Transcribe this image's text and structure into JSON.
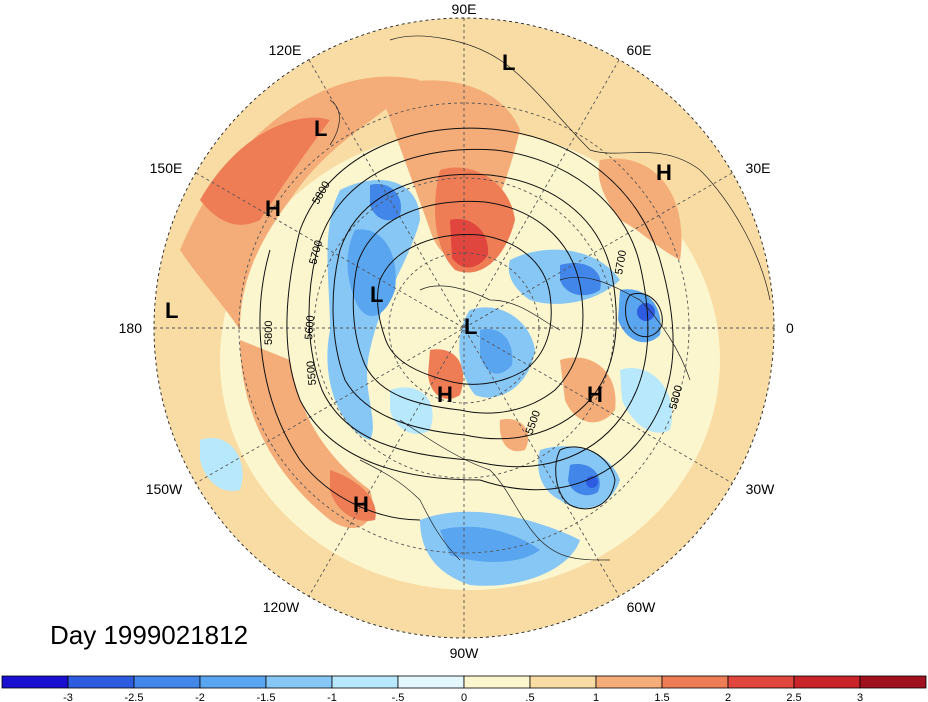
{
  "map": {
    "day_label": "Day 1999021812",
    "lon_labels": {
      "n": "90E",
      "ne": "60E",
      "ene": "30E",
      "e": "0",
      "ese": "30W",
      "se": "60W",
      "s": "90W",
      "sw": "120W",
      "wsw": "150W",
      "w": "180",
      "wnw": "150E",
      "nw": "120E"
    },
    "pressure_centers": [
      {
        "label": "L"
      },
      {
        "label": "L"
      },
      {
        "label": "H"
      },
      {
        "label": "H"
      },
      {
        "label": "L"
      },
      {
        "label": "L"
      },
      {
        "label": "L"
      },
      {
        "label": "H"
      },
      {
        "label": "H"
      },
      {
        "label": "H"
      }
    ],
    "contour_labels": [
      "5800",
      "5700",
      "5600",
      "5500",
      "5800",
      "5700",
      "5800",
      "5500"
    ]
  },
  "colorbar": {
    "ticks": [
      "-3",
      "-2.5",
      "-2",
      "-1.5",
      "-1",
      "-.5",
      "0",
      ".5",
      "1",
      "1.5",
      "2",
      "2.5",
      "3"
    ],
    "colors": [
      "#1a0fd1",
      "#2e5ce0",
      "#4186e8",
      "#5aa5ef",
      "#86c7f5",
      "#b7e8fb",
      "#e4f7fc",
      "#fcf6cf",
      "#f9dca3",
      "#f4ad79",
      "#ee7d55",
      "#e1463e",
      "#c8242a",
      "#a0101f"
    ]
  }
}
